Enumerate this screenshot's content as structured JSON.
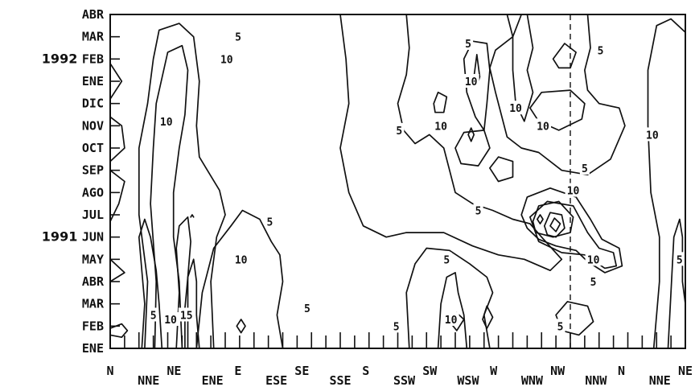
{
  "chart_data": {
    "type": "contour",
    "title": "",
    "xlabel": "",
    "ylabel": "",
    "x_ticks": [
      "N",
      "NNE",
      "NE",
      "ENE",
      "E",
      "ESE",
      "SE",
      "SSE",
      "S",
      "SSW",
      "SW",
      "WSW",
      "W",
      "WNW",
      "NW",
      "NNW",
      "N",
      "NNE",
      "NE"
    ],
    "y_ticks": [
      "ENE",
      "FEB",
      "MAR",
      "ABR",
      "MAY",
      "1991 JUN",
      "JUL",
      "AGO",
      "SEP",
      "OCT",
      "NOV",
      "DIC",
      "ENE",
      "1992 FEB",
      "MAR",
      "ABR"
    ],
    "year_labels": [
      {
        "year": "1991",
        "month_index": 5
      },
      {
        "year": "1992",
        "month_index": 13
      }
    ],
    "contour_levels": [
      5,
      10,
      15
    ],
    "contour_labels": [
      {
        "text": "5",
        "x": 4.45,
        "y": 14.0
      },
      {
        "text": "10",
        "x": 4.05,
        "y": 13.0
      },
      {
        "text": "10",
        "x": 1.95,
        "y": 10.2
      },
      {
        "text": "5",
        "x": 5.55,
        "y": 5.7
      },
      {
        "text": "10",
        "x": 4.55,
        "y": 4.0
      },
      {
        "text": "5",
        "x": 6.85,
        "y": 1.8
      },
      {
        "text": "5",
        "x": 1.5,
        "y": 1.5
      },
      {
        "text": "15",
        "x": 2.65,
        "y": 1.5
      },
      {
        "text": "10",
        "x": 2.1,
        "y": 1.3
      },
      {
        "text": "5",
        "x": 12.45,
        "y": 13.7
      },
      {
        "text": "10",
        "x": 12.55,
        "y": 12.0
      },
      {
        "text": "5",
        "x": 10.05,
        "y": 9.8
      },
      {
        "text": "10",
        "x": 11.5,
        "y": 10.0
      },
      {
        "text": "10",
        "x": 14.1,
        "y": 10.8
      },
      {
        "text": "10",
        "x": 15.05,
        "y": 10.0
      },
      {
        "text": "5",
        "x": 17.05,
        "y": 13.4
      },
      {
        "text": "5",
        "x": 16.5,
        "y": 8.1
      },
      {
        "text": "10",
        "x": 18.85,
        "y": 9.6
      },
      {
        "text": "10",
        "x": 16.1,
        "y": 7.1
      },
      {
        "text": "5",
        "x": 12.8,
        "y": 6.2
      },
      {
        "text": "5",
        "x": 11.7,
        "y": 4.0
      },
      {
        "text": "10",
        "x": 16.8,
        "y": 4.0
      },
      {
        "text": "5",
        "x": 16.8,
        "y": 3.0
      },
      {
        "text": "5",
        "x": 19.8,
        "y": 4.0
      },
      {
        "text": "5",
        "x": 9.95,
        "y": 1.0
      },
      {
        "text": "10",
        "x": 11.85,
        "y": 1.3
      },
      {
        "text": "5",
        "x": 15.65,
        "y": 1.0
      }
    ],
    "reference_line": {
      "x": 16,
      "style": "dashed"
    },
    "xlim": [
      0,
      20
    ],
    "ylim": [
      0,
      15
    ]
  }
}
